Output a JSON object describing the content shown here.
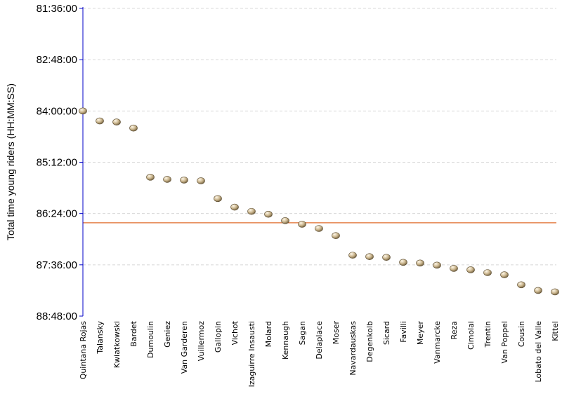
{
  "chart_data": {
    "type": "scatter",
    "ylabel": "Total time young riders (HH:MM:SS)",
    "y_ticks": [
      "81:36:00",
      "82:48:00",
      "84:00:00",
      "85:12:00",
      "86:24:00",
      "87:36:00",
      "88:48:00"
    ],
    "y_range_seconds": [
      293760,
      319680
    ],
    "y_inverted": true,
    "grid": true,
    "reference_line_seconds": 311820,
    "colors": {
      "axis": "#0000c8",
      "reference_line": "#e06c2c",
      "marker": "#c9b48c",
      "grid": "#d8d8d8"
    },
    "categories": [
      "Quintana Rojas",
      "Talansky",
      "Kwiatkowski",
      "Bardet",
      "Dumoulin",
      "Geniez",
      "Van Garderen",
      "Vuillermoz",
      "Gallopin",
      "Vichot",
      "Izaguirre Insausti",
      "Molard",
      "Kennaugh",
      "Sagan",
      "Delaplace",
      "Moser",
      "Navardauskas",
      "Degenkolb",
      "Sicard",
      "Favilli",
      "Meyer",
      "Vanmarcke",
      "Reza",
      "Cimolai",
      "Trentin",
      "Van Poppel",
      "Cousin",
      "Lobato del Valle",
      "Kittel"
    ],
    "values_seconds": [
      302400,
      303240,
      303330,
      303840,
      307980,
      308160,
      308220,
      308280,
      309780,
      310500,
      310860,
      311100,
      311640,
      311940,
      312300,
      312900,
      314550,
      314670,
      314730,
      315150,
      315210,
      315390,
      315660,
      315780,
      316020,
      316200,
      317040,
      317520,
      317640
    ]
  }
}
